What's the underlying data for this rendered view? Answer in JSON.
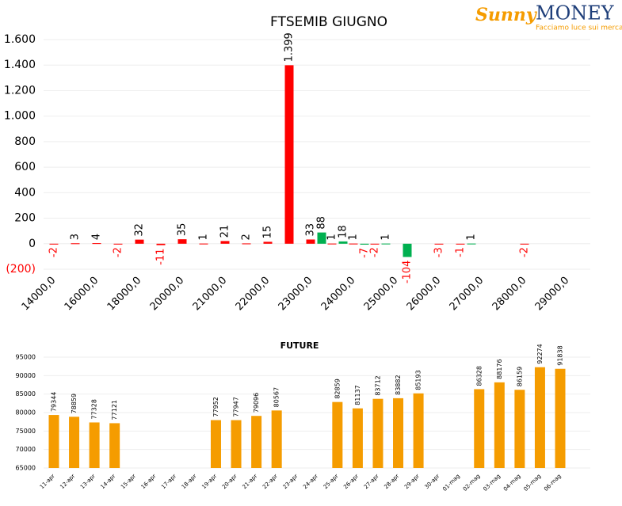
{
  "logo": {
    "brand_a": "Sunny",
    "brand_b": "MONEY",
    "tagline": "Facciamo luce sui mercati"
  },
  "chart_data": [
    {
      "type": "bar",
      "title": "FTSEMIB GIUGNO",
      "categories": [
        "14000,0",
        null,
        "16000,0",
        null,
        "18000,0",
        null,
        "20000,0",
        null,
        "21000,0",
        null,
        "22000,0",
        null,
        "23000,0",
        null,
        "24000,0",
        null,
        "25000,0",
        null,
        "26000,0",
        null,
        "27000,0",
        null,
        "28000,0",
        null,
        "29000,0"
      ],
      "series": [
        {
          "color": "#ff0000",
          "values": [
            -2,
            3,
            4,
            -2,
            32,
            -11,
            35,
            1,
            21,
            2,
            15,
            1399,
            33,
            1,
            1,
            -2,
            null,
            null,
            -3,
            -1,
            null,
            null,
            -2,
            null,
            null
          ],
          "value_labels": [
            "-2",
            "3",
            "4",
            "-2",
            "32",
            "-11",
            "35",
            "1",
            "21",
            "2",
            "15",
            "1.399",
            "33",
            "1",
            "1",
            "-2",
            null,
            null,
            "-3",
            "-1",
            null,
            null,
            "-2",
            null,
            null
          ]
        },
        {
          "color": "#00b050",
          "values": [
            null,
            null,
            null,
            null,
            null,
            null,
            null,
            null,
            null,
            null,
            null,
            null,
            88,
            18,
            -7,
            1,
            -104,
            null,
            null,
            1,
            null,
            null,
            null,
            null,
            null
          ]
        }
      ],
      "negative_label_color": "#ff0000",
      "ylim": [
        -200,
        1600
      ],
      "yticks": [
        {
          "value": -200,
          "label": "(200)"
        },
        0,
        200,
        400,
        600,
        800,
        {
          "value": 1000,
          "label": "1.000"
        },
        {
          "value": 1200,
          "label": "1.200"
        },
        {
          "value": 1400,
          "label": "1.400"
        },
        {
          "value": 1600,
          "label": "1.600"
        }
      ],
      "grid": true
    },
    {
      "type": "bar",
      "title": "FUTURE",
      "categories": [
        "11-apr",
        "12-apr",
        "13-apr",
        "14-apr",
        "15-apr",
        "16-apr",
        "17-apr",
        "18-apr",
        "19-apr",
        "20-apr",
        "21-apr",
        "22-apr",
        "23-apr",
        "24-apr",
        "25-apr",
        "26-apr",
        "27-apr",
        "28-apr",
        "29-apr",
        "30-apr",
        "01-mag",
        "02-mag",
        "03-mag",
        "04-mag",
        "05-mag",
        "06-mag"
      ],
      "series": [
        {
          "color": "#f59c00",
          "values": [
            79344,
            78859,
            77328,
            77121,
            null,
            null,
            null,
            null,
            77952,
            77947,
            79096,
            80567,
            null,
            null,
            82859,
            81137,
            83712,
            83882,
            85193,
            null,
            null,
            86328,
            88176,
            86159,
            92274,
            91838
          ]
        }
      ],
      "ylim": [
        65000,
        95000
      ],
      "yticks": [
        65000,
        70000,
        75000,
        80000,
        85000,
        90000,
        95000
      ],
      "grid": true
    }
  ]
}
